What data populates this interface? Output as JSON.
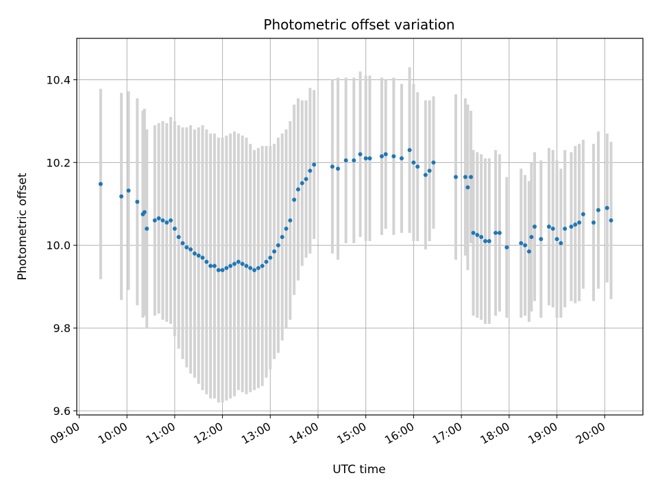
{
  "chart_data": {
    "type": "scatter",
    "title": "Photometric offset variation",
    "xlabel": "UTC time",
    "ylabel": "Photometric offset",
    "xlim": [
      "08:57",
      "20:48"
    ],
    "ylim": [
      9.59,
      10.5
    ],
    "grid": true,
    "x_ticks": [
      "09:00",
      "10:00",
      "11:00",
      "12:00",
      "13:00",
      "14:00",
      "15:00",
      "16:00",
      "17:00",
      "18:00",
      "19:00",
      "20:00"
    ],
    "y_ticks": [
      "9.6",
      "9.8",
      "10.0",
      "10.2",
      "10.4"
    ],
    "y_tick_values": [
      9.6,
      9.8,
      10.0,
      10.2,
      10.4
    ],
    "marker_color": "#1f77b4",
    "errorbar_color": "#d3d3d3",
    "series": [
      {
        "x": [
          "09:27",
          "09:53",
          "10:02",
          "10:13",
          "10:20",
          "10:22",
          "10:25",
          "10:35",
          "10:40",
          "10:45",
          "10:50",
          "10:55",
          "11:00",
          "11:05",
          "11:10",
          "11:15",
          "11:20",
          "11:25",
          "11:30",
          "11:35",
          "11:40",
          "11:45",
          "11:50",
          "11:55",
          "12:00",
          "12:05",
          "12:10",
          "12:15",
          "12:20",
          "12:25",
          "12:30",
          "12:35",
          "12:40",
          "12:45",
          "12:50",
          "12:55",
          "13:00",
          "13:05",
          "13:10",
          "13:15",
          "13:20",
          "13:25",
          "13:30",
          "13:35",
          "13:40",
          "13:45",
          "13:50",
          "13:55",
          "14:18",
          "14:25",
          "14:35",
          "14:45",
          "14:53",
          "15:00",
          "15:05",
          "15:20",
          "15:25",
          "15:35",
          "15:45",
          "15:55",
          "16:00",
          "16:05",
          "16:15",
          "16:20",
          "16:25",
          "16:53",
          "17:05",
          "17:08",
          "17:12",
          "17:15",
          "17:20",
          "17:25",
          "17:30",
          "17:35",
          "17:43",
          "17:48",
          "17:57",
          "18:15",
          "18:20",
          "18:25",
          "18:28",
          "18:32",
          "18:40",
          "18:50",
          "18:55",
          "19:00",
          "19:05",
          "19:10",
          "19:18",
          "19:23",
          "19:28",
          "19:33",
          "19:46",
          "19:52",
          "20:03",
          "20:08"
        ],
        "y": [
          10.148,
          10.118,
          10.132,
          10.105,
          10.075,
          10.08,
          10.04,
          10.06,
          10.065,
          10.06,
          10.055,
          10.06,
          10.04,
          10.02,
          10.005,
          9.995,
          9.99,
          9.98,
          9.975,
          9.97,
          9.96,
          9.95,
          9.95,
          9.94,
          9.94,
          9.945,
          9.95,
          9.955,
          9.96,
          9.955,
          9.95,
          9.945,
          9.94,
          9.945,
          9.95,
          9.96,
          9.97,
          9.985,
          10.0,
          10.02,
          10.04,
          10.06,
          10.11,
          10.135,
          10.15,
          10.16,
          10.18,
          10.195,
          10.19,
          10.185,
          10.205,
          10.205,
          10.22,
          10.21,
          10.21,
          10.215,
          10.22,
          10.215,
          10.21,
          10.23,
          10.2,
          10.19,
          10.17,
          10.18,
          10.2,
          10.165,
          10.165,
          10.14,
          10.165,
          10.03,
          10.025,
          10.02,
          10.01,
          10.01,
          10.03,
          10.03,
          9.995,
          10.005,
          10.0,
          9.985,
          10.02,
          10.045,
          10.015,
          10.045,
          10.04,
          10.015,
          10.005,
          10.04,
          10.045,
          10.05,
          10.055,
          10.075,
          10.055,
          10.085,
          10.09,
          10.06
        ],
        "err": [
          0.23,
          0.25,
          0.24,
          0.25,
          0.25,
          0.25,
          0.24,
          0.23,
          0.23,
          0.24,
          0.24,
          0.25,
          0.26,
          0.27,
          0.28,
          0.29,
          0.3,
          0.3,
          0.31,
          0.32,
          0.32,
          0.32,
          0.32,
          0.32,
          0.32,
          0.32,
          0.32,
          0.32,
          0.31,
          0.31,
          0.31,
          0.3,
          0.29,
          0.29,
          0.29,
          0.28,
          0.27,
          0.26,
          0.26,
          0.25,
          0.24,
          0.24,
          0.23,
          0.22,
          0.2,
          0.19,
          0.2,
          0.18,
          0.21,
          0.22,
          0.2,
          0.2,
          0.2,
          0.2,
          0.2,
          0.19,
          0.18,
          0.19,
          0.18,
          0.2,
          0.19,
          0.18,
          0.18,
          0.17,
          0.16,
          0.2,
          0.19,
          0.2,
          0.16,
          0.2,
          0.2,
          0.2,
          0.2,
          0.2,
          0.2,
          0.19,
          0.17,
          0.18,
          0.17,
          0.17,
          0.18,
          0.18,
          0.19,
          0.19,
          0.19,
          0.19,
          0.18,
          0.19,
          0.18,
          0.19,
          0.19,
          0.18,
          0.19,
          0.19,
          0.18,
          0.19
        ]
      }
    ]
  }
}
